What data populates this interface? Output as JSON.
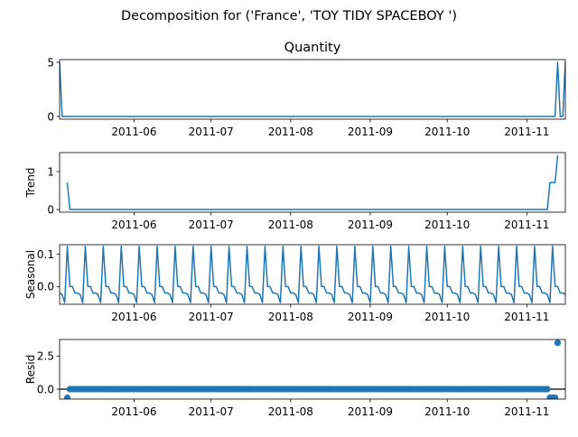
{
  "title": "Decomposition for ('France', 'TOY TIDY SPACEBOY  ')",
  "colors": {
    "series": "#1f77b4",
    "axis": "#000000",
    "background": "#ffffff"
  },
  "chart_data": [
    {
      "panel": "observed",
      "type": "line",
      "title": "Quantity",
      "ylabel": "",
      "x_range": [
        "2011-05-03",
        "2011-11-16"
      ],
      "ylim": [
        -0.25,
        5.25
      ],
      "x_ticks": [
        "2011-06",
        "2011-07",
        "2011-08",
        "2011-09",
        "2011-10",
        "2011-11"
      ],
      "y_ticks": [
        0,
        5
      ],
      "y_tick_labels": [
        "0",
        "5"
      ],
      "segments": [
        {
          "points": [
            [
              "2011-05-03",
              5
            ],
            [
              "2011-05-04",
              0
            ],
            [
              "2011-11-12",
              0
            ],
            [
              "2011-11-13",
              5
            ],
            [
              "2011-11-14",
              0
            ],
            [
              "2011-11-15",
              0
            ],
            [
              "2011-11-16",
              5
            ]
          ]
        }
      ]
    },
    {
      "panel": "trend",
      "type": "line",
      "title": "",
      "ylabel": "Trend",
      "x_range": [
        "2011-05-03",
        "2011-11-16"
      ],
      "ylim": [
        -0.07,
        1.5
      ],
      "x_ticks": [
        "2011-06",
        "2011-07",
        "2011-08",
        "2011-09",
        "2011-10",
        "2011-11"
      ],
      "y_ticks": [
        0,
        1
      ],
      "y_tick_labels": [
        "0",
        "1"
      ],
      "segments": [
        {
          "points": [
            [
              "2011-05-06",
              0.71
            ],
            [
              "2011-05-07",
              0
            ],
            [
              "2011-11-09",
              0
            ],
            [
              "2011-11-10",
              0.71
            ],
            [
              "2011-11-12",
              0.71
            ],
            [
              "2011-11-13",
              1.43
            ]
          ]
        }
      ]
    },
    {
      "panel": "seasonal",
      "type": "line",
      "title": "",
      "ylabel": "Seasonal",
      "x_range": [
        "2011-05-03",
        "2011-11-16"
      ],
      "ylim": [
        -0.055,
        0.13
      ],
      "x_ticks": [
        "2011-06",
        "2011-07",
        "2011-08",
        "2011-09",
        "2011-10",
        "2011-11"
      ],
      "y_ticks": [
        0,
        0.1
      ],
      "y_tick_labels": [
        "0.0",
        "0.1"
      ],
      "pattern": {
        "start": "2011-05-03",
        "end": "2011-11-16",
        "period_days": 7,
        "values": [
          -0.02,
          -0.025,
          -0.05,
          0.125,
          0.0,
          0.0,
          -0.02
        ]
      }
    },
    {
      "panel": "resid",
      "type": "scatter",
      "title": "",
      "ylabel": "Resid",
      "x_range": [
        "2011-05-03",
        "2011-11-16"
      ],
      "ylim": [
        -0.75,
        3.75
      ],
      "x_ticks": [
        "2011-06",
        "2011-07",
        "2011-08",
        "2011-09",
        "2011-10",
        "2011-11"
      ],
      "y_ticks": [
        0,
        2.5
      ],
      "y_tick_labels": [
        "0.0",
        "2.5"
      ],
      "zero_line": true,
      "points_range": {
        "start": "2011-05-06",
        "end": "2011-11-13",
        "default_value": 0.0
      },
      "special_points": [
        [
          "2011-05-06",
          -0.65
        ],
        [
          "2011-11-10",
          -0.65
        ],
        [
          "2011-11-11",
          -0.65
        ],
        [
          "2011-11-12",
          -0.65
        ],
        [
          "2011-11-13",
          3.5
        ]
      ]
    }
  ]
}
